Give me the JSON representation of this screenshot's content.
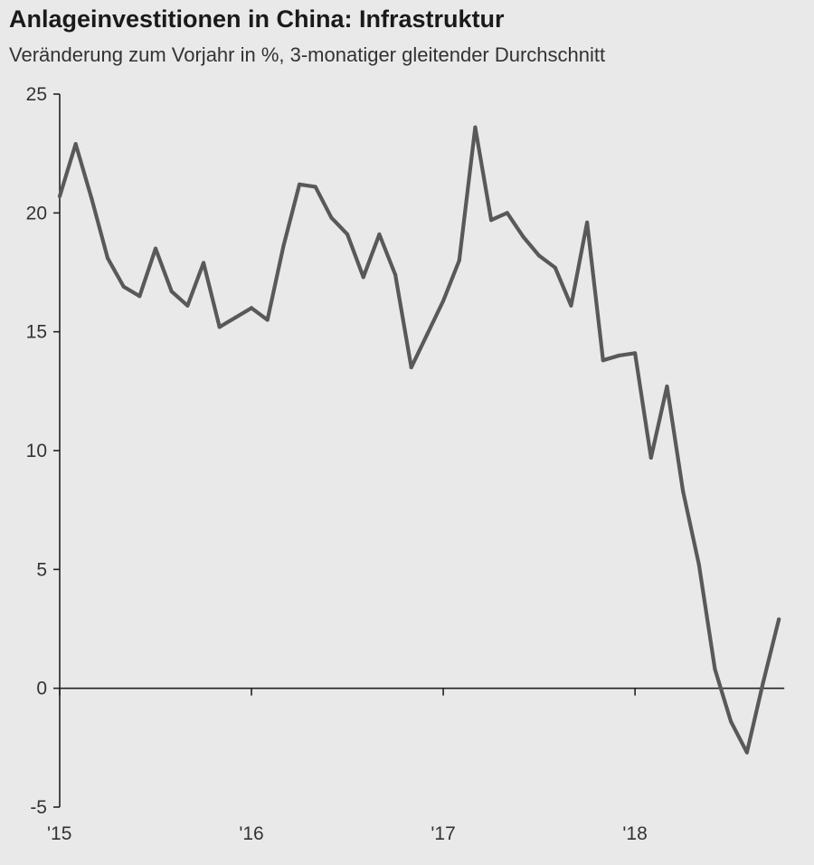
{
  "chart_data": {
    "type": "line",
    "title": "Anlageinvestitionen in China: Infrastruktur",
    "subtitle": "Veränderung zum Vorjahr in %, 3-monatiger gleitender Durchschnitt",
    "xlabel": "",
    "ylabel": "",
    "ylim": [
      -5,
      25
    ],
    "yticks": [
      -5,
      0,
      5,
      10,
      15,
      20,
      25
    ],
    "xlim": [
      "2015-01",
      "2018-10"
    ],
    "xticks": [
      {
        "label": "'15",
        "date": "2015-01"
      },
      {
        "label": "'16",
        "date": "2016-01"
      },
      {
        "label": "'17",
        "date": "2017-01"
      },
      {
        "label": "'18",
        "date": "2018-01"
      }
    ],
    "grid": false,
    "color": "#595959",
    "series": [
      {
        "x": [
          "2015-01",
          "2015-02",
          "2015-03",
          "2015-04",
          "2015-05",
          "2015-06",
          "2015-07",
          "2015-08",
          "2015-09",
          "2015-10",
          "2015-11",
          "2015-12",
          "2016-01",
          "2016-02",
          "2016-03",
          "2016-04",
          "2016-05",
          "2016-06",
          "2016-07",
          "2016-08",
          "2016-09",
          "2016-10",
          "2016-11",
          "2016-12",
          "2017-01",
          "2017-02",
          "2017-03",
          "2017-04",
          "2017-05",
          "2017-06",
          "2017-07",
          "2017-08",
          "2017-09",
          "2017-10",
          "2017-11",
          "2017-12",
          "2018-01",
          "2018-02",
          "2018-03",
          "2018-04",
          "2018-05",
          "2018-06",
          "2018-07",
          "2018-08",
          "2018-09",
          "2018-10"
        ],
        "values": [
          20.7,
          22.9,
          20.6,
          18.1,
          16.9,
          16.5,
          18.5,
          16.7,
          16.1,
          17.9,
          15.2,
          15.6,
          16.0,
          15.5,
          18.6,
          21.2,
          21.1,
          19.8,
          19.1,
          17.3,
          19.1,
          17.4,
          13.5,
          14.9,
          16.3,
          18.0,
          23.6,
          19.7,
          20.0,
          19.0,
          18.2,
          17.7,
          16.1,
          19.6,
          13.8,
          14.0,
          14.1,
          9.7,
          12.7,
          8.3,
          5.2,
          0.8,
          -1.4,
          -2.7,
          0.2,
          2.9
        ]
      }
    ]
  }
}
